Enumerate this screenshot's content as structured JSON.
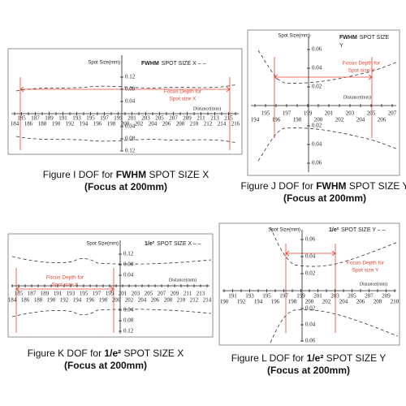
{
  "panels": [
    {
      "title_left": "Spot Size(mm)",
      "title_bold": "FWHM",
      "title_rest": "SPOT SIZE X – –",
      "annotation": [
        "Focus Depth for",
        "Spot size X"
      ],
      "distance_label": "Distance(mm)",
      "x_ticks_top": [
        185,
        187,
        189,
        191,
        193,
        195,
        197,
        199,
        201,
        203,
        205,
        207,
        209,
        211,
        213,
        215
      ],
      "x_ticks_bottom": [
        184,
        186,
        188,
        190,
        192,
        194,
        196,
        198,
        200,
        202,
        204,
        206,
        208,
        210,
        212,
        214,
        216
      ],
      "y_ticks_up": [
        0.12,
        0.08,
        0.04
      ],
      "y_ticks_down": [
        0.04,
        0.08,
        0.12
      ],
      "caption": {
        "prefix": "Figure I DOF for",
        "bold": "FWHM",
        "suffix": "SPOT SIZE X",
        "focus": "(Focus at 200mm)"
      }
    },
    {
      "title_left": "Spot Size(mm)",
      "title_bold": "FWHM",
      "title_rest": "SPOT SIZE",
      "title_rest2": "Y",
      "annotation": [
        "Focus Depth for",
        "Spot size Y"
      ],
      "distance_label": "Distance(mm)",
      "x_ticks_top": [
        195,
        197,
        199,
        201,
        203,
        205,
        207
      ],
      "x_ticks_bottom": [
        194,
        196,
        198,
        200,
        202,
        204,
        206
      ],
      "y_ticks_up": [
        0.06,
        0.04,
        0.02
      ],
      "y_ticks_down": [
        0.02,
        0.04,
        0.06
      ],
      "caption": {
        "prefix": "Figure J DOF for",
        "bold": "FWHM",
        "suffix": "SPOT SIZE Y",
        "focus": "(Focus at 200mm)"
      }
    },
    {
      "title_left": "Spot Size(mm)",
      "title_bold": "1/e²",
      "title_rest": "SPOT SIZE X – –",
      "annotation": [
        "Focus Depth for",
        "Spot size X"
      ],
      "distance_label": "Distance(mm)",
      "x_ticks_top": [
        185,
        187,
        189,
        191,
        193,
        195,
        197,
        199,
        201,
        203,
        205,
        207,
        209,
        211,
        213
      ],
      "x_ticks_bottom": [
        184,
        186,
        188,
        190,
        192,
        194,
        196,
        198,
        200,
        202,
        204,
        206,
        208,
        210,
        212,
        214
      ],
      "y_ticks_up": [
        0.12,
        0.08,
        0.04
      ],
      "y_ticks_down": [
        0.04,
        0.08,
        0.12
      ],
      "caption": {
        "prefix": "Figure K DOF for",
        "bold": "1/e²",
        "suffix": "SPOT SIZE X",
        "focus": "(Focus at 200mm)"
      }
    },
    {
      "title_left": "Spot Size(mm)",
      "title_bold": "1/e²",
      "title_rest": "SPOT SIZE Y – –",
      "annotation": [
        "Focus Depth for",
        "Spot size Y"
      ],
      "distance_label": "Distance(mm)",
      "x_ticks_top": [
        191,
        193,
        195,
        197,
        199,
        201,
        203,
        205,
        207,
        209
      ],
      "x_ticks_bottom": [
        190,
        192,
        194,
        196,
        198,
        200,
        202,
        204,
        206,
        208,
        210
      ],
      "y_ticks_up": [
        0.06,
        0.04,
        0.02
      ],
      "y_ticks_down": [
        0.02,
        0.04,
        0.06
      ],
      "caption": {
        "prefix": "Figure L DOF for",
        "bold": "1/e²",
        "suffix": "SPOT SIZE Y",
        "focus": "(Focus at 200mm)"
      }
    }
  ]
}
